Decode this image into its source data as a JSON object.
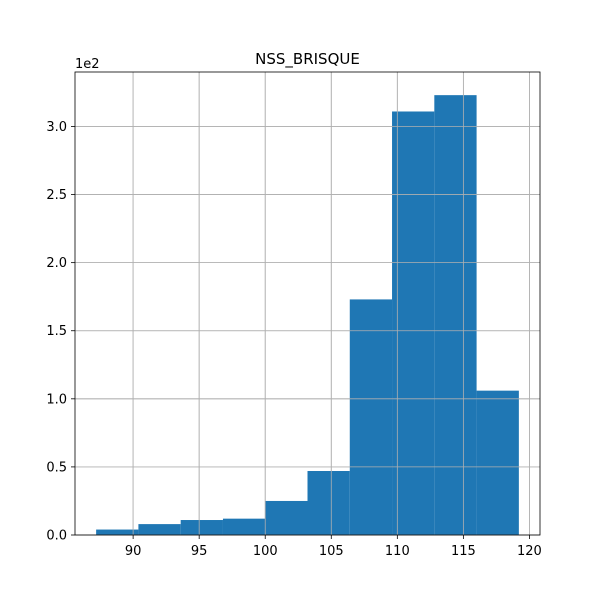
{
  "chart_data": {
    "type": "bar",
    "subtype": "histogram",
    "title": "NSS_BRISQUE",
    "xlabel": "",
    "ylabel": "",
    "y_offset_label": "1e2",
    "bin_edges": [
      87.2,
      90.4,
      93.6,
      96.8,
      100.0,
      103.2,
      106.4,
      109.6,
      112.8,
      116.0,
      119.2
    ],
    "values": [
      4,
      8,
      11,
      12,
      25,
      47,
      173,
      311,
      323,
      106
    ],
    "xlim": [
      85.6,
      120.8
    ],
    "ylim": [
      0,
      340
    ],
    "x_ticks": [
      90,
      95,
      100,
      105,
      110,
      115,
      120
    ],
    "x_tick_labels": [
      "90",
      "95",
      "100",
      "105",
      "110",
      "115",
      "120"
    ],
    "y_ticks": [
      0,
      50,
      100,
      150,
      200,
      250,
      300
    ],
    "y_tick_labels": [
      "0.0",
      "0.5",
      "1.0",
      "1.5",
      "2.0",
      "2.5",
      "3.0"
    ],
    "grid": true,
    "bar_color": "#1f77b4",
    "grid_color": "#b0b0b0"
  }
}
